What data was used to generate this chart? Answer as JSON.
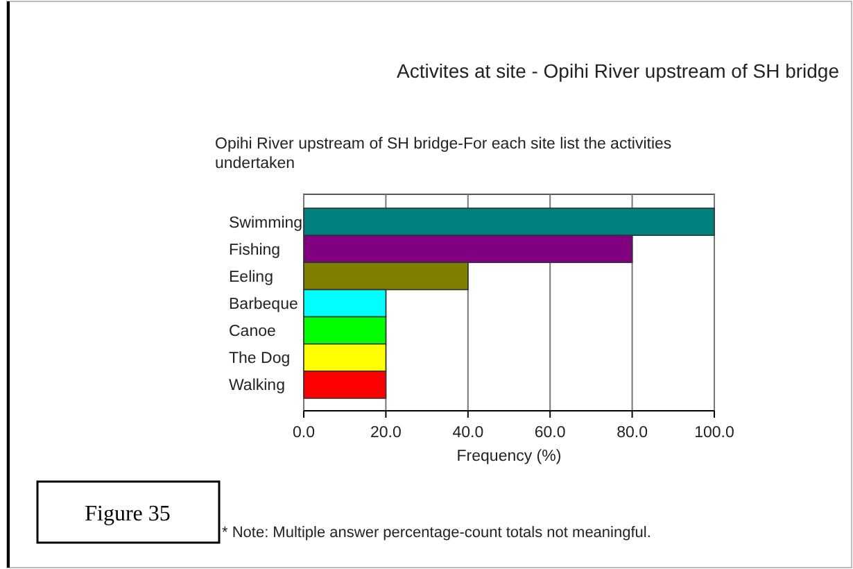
{
  "chart_data": {
    "type": "bar",
    "orientation": "horizontal",
    "title": "Activites at site - Opihi River upstream of SH bridge",
    "subtitle": "Opihi River upstream of SH bridge-For each site list the activities undertaken",
    "xlabel": "Frequency (%)",
    "categories": [
      "Swimming",
      "Fishing",
      "Eeling",
      "Barbeque",
      "Canoe",
      "The Dog",
      "Walking"
    ],
    "values": [
      100,
      80,
      40,
      20,
      20,
      20,
      20
    ],
    "colors": [
      "#008080",
      "#800080",
      "#808000",
      "#00ffff",
      "#00ff00",
      "#ffff00",
      "#ff0000"
    ],
    "xlim": [
      0,
      100
    ],
    "xticks": [
      {
        "value": 0,
        "label": "0.0"
      },
      {
        "value": 20,
        "label": "20.0"
      },
      {
        "value": 40,
        "label": "40.0"
      },
      {
        "value": 60,
        "label": "60.0"
      },
      {
        "value": 80,
        "label": "80.0"
      },
      {
        "value": 100,
        "label": "100.0"
      }
    ],
    "grid": "x",
    "annotations": [
      "Figure 35",
      "* Note:  Multiple answer percentage-count totals not meaningful."
    ]
  }
}
